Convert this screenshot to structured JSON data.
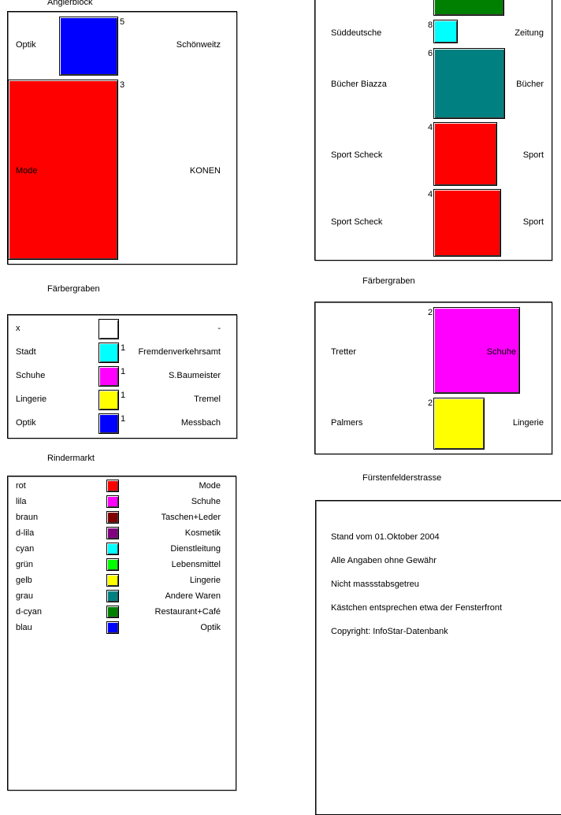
{
  "sections": [
    {
      "title": "Anglerblock",
      "entries": [
        {
          "left": "Optik",
          "right": "Schönweitz",
          "count": 5,
          "color": "#0000ff"
        },
        {
          "left": "Mode",
          "right": "KONEN",
          "count": 3,
          "color": "#ff0000"
        }
      ]
    },
    {
      "title": "Färbergraben",
      "entries": [
        {
          "left": "x",
          "right": "-",
          "color": "#ffffff"
        },
        {
          "left": "Stadt",
          "right": "Fremdenverkehrsamt",
          "count": 1,
          "color": "#00ffff"
        },
        {
          "left": "Schuhe",
          "right": "S.Baumeister",
          "count": 1,
          "color": "#ff00ff"
        },
        {
          "left": "Lingerie",
          "right": "Tremel",
          "count": 1,
          "color": "#ffff00"
        },
        {
          "left": "Optik",
          "right": "Messbach",
          "count": 1,
          "color": "#0000ff"
        }
      ]
    },
    {
      "entries": [
        {
          "color": "#008000"
        },
        {
          "left": "Süddeutsche",
          "right": "Zeitung",
          "count": 8,
          "color": "#00ffff"
        },
        {
          "left": "Bücher Biazza",
          "right": "Bücher",
          "count": 6,
          "color": "#008080"
        },
        {
          "left": "Sport Scheck",
          "right": "Sport",
          "count": 4,
          "color": "#ff0000"
        },
        {
          "left": "Sport Scheck",
          "right": "Sport",
          "count": 4,
          "color": "#ff0000"
        }
      ]
    },
    {
      "title": "Färbergraben",
      "entries": [
        {
          "left": "Tretter",
          "right": "Schuhe",
          "count": 2,
          "color": "#ff00ff"
        },
        {
          "left": "Palmers",
          "right": "Lingerie",
          "count": 2,
          "color": "#ffff00"
        }
      ]
    }
  ],
  "legend": {
    "title": "Rindermarkt",
    "items": [
      {
        "name": "rot",
        "category": "Mode",
        "color": "#ff0000"
      },
      {
        "name": "lila",
        "category": "Schuhe",
        "color": "#ff00ff"
      },
      {
        "name": "braun",
        "category": "Taschen+Leder",
        "color": "#800000"
      },
      {
        "name": "d-lila",
        "category": "Kosmetik",
        "color": "#800080"
      },
      {
        "name": "cyan",
        "category": "Dienstleitung",
        "color": "#00ffff"
      },
      {
        "name": "grün",
        "category": "Lebensmittel",
        "color": "#00ff00"
      },
      {
        "name": "gelb",
        "category": "Lingerie",
        "color": "#ffff00"
      },
      {
        "name": "grau",
        "category": "Andere Waren",
        "color": "#008080"
      },
      {
        "name": "d-cyan",
        "category": "Restaurant+Café",
        "color": "#008000"
      },
      {
        "name": "blau",
        "category": "Optik",
        "color": "#0000ff"
      }
    ]
  },
  "notes": {
    "title": "Fürstenfelderstrasse",
    "lines": [
      "Stand vom 01.Oktober 2004",
      "Alle Angaben ohne Gewähr",
      "Nicht massstabsgetreu",
      "Kästchen entsprechen etwa der Fensterfront",
      "Copyright: InfoStar-Datenbank"
    ]
  }
}
